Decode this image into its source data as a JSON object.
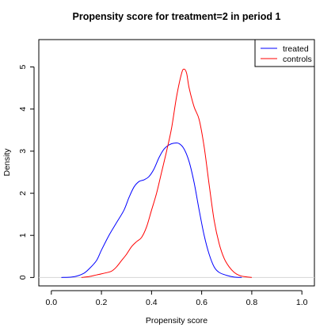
{
  "chart_data": {
    "type": "line",
    "title": "Propensity score for treatment=2 in period 1",
    "xlabel": "Propensity score",
    "ylabel": "Density",
    "xlim": [
      -0.05,
      1.05
    ],
    "ylim": [
      -0.2,
      5.65
    ],
    "x_ticks": [
      0.0,
      0.2,
      0.4,
      0.6,
      0.8,
      1.0
    ],
    "x_tick_labels": [
      "0.0",
      "0.2",
      "0.4",
      "0.6",
      "0.8",
      "1.0"
    ],
    "y_ticks": [
      0,
      1,
      2,
      3,
      4,
      5
    ],
    "y_tick_labels": [
      "0",
      "1",
      "2",
      "3",
      "4",
      "5"
    ],
    "zero_line": true,
    "legend_position": "top-right",
    "series": [
      {
        "name": "treated",
        "color": "#0000ff",
        "points": [
          [
            0.04,
            0.0
          ],
          [
            0.08,
            0.01
          ],
          [
            0.1,
            0.03
          ],
          [
            0.13,
            0.1
          ],
          [
            0.15,
            0.2
          ],
          [
            0.18,
            0.4
          ],
          [
            0.2,
            0.65
          ],
          [
            0.23,
            1.0
          ],
          [
            0.26,
            1.3
          ],
          [
            0.29,
            1.6
          ],
          [
            0.31,
            1.9
          ],
          [
            0.33,
            2.15
          ],
          [
            0.35,
            2.28
          ],
          [
            0.37,
            2.32
          ],
          [
            0.39,
            2.4
          ],
          [
            0.41,
            2.58
          ],
          [
            0.43,
            2.85
          ],
          [
            0.45,
            3.05
          ],
          [
            0.47,
            3.15
          ],
          [
            0.49,
            3.19
          ],
          [
            0.51,
            3.18
          ],
          [
            0.53,
            3.05
          ],
          [
            0.55,
            2.75
          ],
          [
            0.57,
            2.25
          ],
          [
            0.59,
            1.6
          ],
          [
            0.61,
            1.0
          ],
          [
            0.63,
            0.55
          ],
          [
            0.65,
            0.25
          ],
          [
            0.67,
            0.12
          ],
          [
            0.7,
            0.05
          ],
          [
            0.73,
            0.01
          ],
          [
            0.76,
            0.0
          ]
        ]
      },
      {
        "name": "controls",
        "color": "#ff0000",
        "points": [
          [
            0.12,
            0.0
          ],
          [
            0.15,
            0.02
          ],
          [
            0.18,
            0.06
          ],
          [
            0.21,
            0.1
          ],
          [
            0.24,
            0.15
          ],
          [
            0.26,
            0.25
          ],
          [
            0.28,
            0.4
          ],
          [
            0.3,
            0.55
          ],
          [
            0.32,
            0.73
          ],
          [
            0.34,
            0.85
          ],
          [
            0.36,
            0.95
          ],
          [
            0.38,
            1.2
          ],
          [
            0.4,
            1.6
          ],
          [
            0.42,
            2.0
          ],
          [
            0.44,
            2.5
          ],
          [
            0.46,
            3.0
          ],
          [
            0.48,
            3.55
          ],
          [
            0.5,
            4.3
          ],
          [
            0.52,
            4.85
          ],
          [
            0.53,
            4.95
          ],
          [
            0.54,
            4.85
          ],
          [
            0.55,
            4.5
          ],
          [
            0.57,
            4.05
          ],
          [
            0.59,
            3.75
          ],
          [
            0.61,
            3.1
          ],
          [
            0.63,
            2.2
          ],
          [
            0.65,
            1.35
          ],
          [
            0.67,
            0.8
          ],
          [
            0.69,
            0.45
          ],
          [
            0.71,
            0.25
          ],
          [
            0.73,
            0.12
          ],
          [
            0.75,
            0.05
          ],
          [
            0.77,
            0.02
          ],
          [
            0.8,
            0.0
          ]
        ]
      }
    ]
  }
}
